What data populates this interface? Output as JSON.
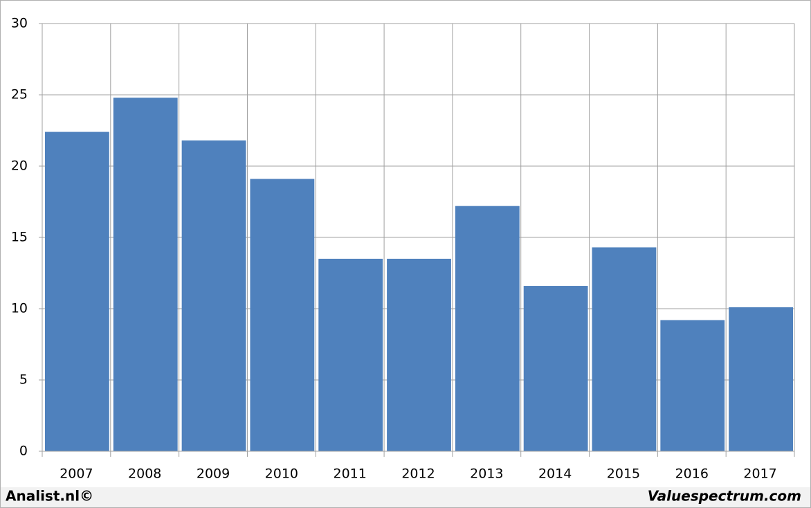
{
  "chart_data": {
    "type": "bar",
    "categories": [
      "2007",
      "2008",
      "2009",
      "2010",
      "2011",
      "2012",
      "2013",
      "2014",
      "2015",
      "2016",
      "2017"
    ],
    "values": [
      22.4,
      24.8,
      21.8,
      19.1,
      13.5,
      13.5,
      17.2,
      11.6,
      14.3,
      9.2,
      10.1
    ],
    "color": "#4f81bd",
    "ylim": [
      0,
      30
    ],
    "yticks": [
      0,
      5,
      10,
      15,
      20,
      25,
      30
    ],
    "grid": true,
    "footer_left": "Analist.nl©",
    "footer_right": "Valuespectrum.com"
  }
}
